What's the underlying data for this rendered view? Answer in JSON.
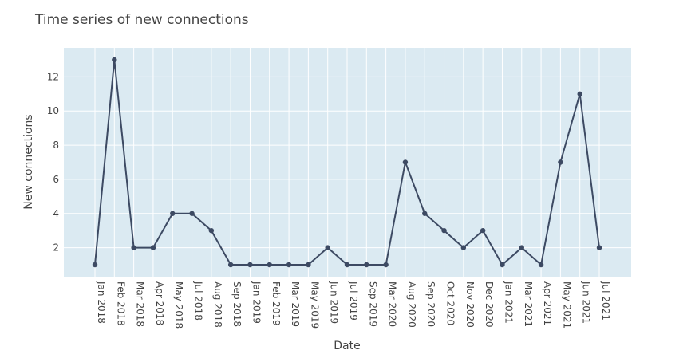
{
  "chart_data": {
    "type": "line",
    "title": "Time series of new connections",
    "xlabel": "Date",
    "ylabel": "New connections",
    "x_type": "category",
    "categories": [
      "Jan 2018",
      "Feb 2018",
      "Mar 2018",
      "Apr 2018",
      "May 2018",
      "Jul 2018",
      "Aug 2018",
      "Sep 2018",
      "Jan 2019",
      "Feb 2019",
      "Mar 2019",
      "May 2019",
      "Jun 2019",
      "Jul 2019",
      "Sep 2019",
      "Mar 2020",
      "Aug 2020",
      "Sep 2020",
      "Oct 2020",
      "Nov 2020",
      "Dec 2020",
      "Jan 2021",
      "Mar 2021",
      "Apr 2021",
      "May 2021",
      "Jun 2021",
      "Jul 2021"
    ],
    "series": [
      {
        "values": [
          1,
          13,
          2,
          2,
          4,
          4,
          3,
          1,
          1,
          1,
          1,
          1,
          2,
          1,
          1,
          1,
          7,
          4,
          3,
          2,
          3,
          1,
          2,
          1,
          7,
          11,
          2
        ]
      }
    ],
    "yticks": [
      2,
      4,
      6,
      8,
      10,
      12
    ],
    "ylim": [
      0.3,
      13.7
    ],
    "grid": true,
    "legend": "none",
    "colors": {
      "line": "#3d4a63",
      "plot_background": "#dbeaf2",
      "grid": "#ffffff",
      "text": "#444444"
    }
  }
}
